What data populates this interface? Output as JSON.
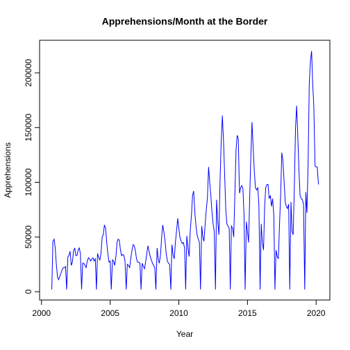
{
  "chart_data": {
    "type": "line",
    "title": "Apprehensions/Month at the Border",
    "x_label": "Year",
    "y_label": "Apprehensions",
    "x": [
      2000.75,
      2000.83,
      2000.92,
      2001,
      2001.08,
      2001.17,
      2001.25,
      2001.33,
      2001.42,
      2001.5,
      2001.58,
      2001.67,
      2001.75,
      2001.83,
      2001.92,
      2002,
      2002.08,
      2002.17,
      2002.25,
      2002.33,
      2002.42,
      2002.5,
      2002.58,
      2002.67,
      2002.75,
      2002.83,
      2002.92,
      2003,
      2003.08,
      2003.17,
      2003.25,
      2003.33,
      2003.42,
      2003.5,
      2003.58,
      2003.67,
      2003.75,
      2003.83,
      2003.92,
      2004,
      2004.08,
      2004.17,
      2004.25,
      2004.33,
      2004.42,
      2004.5,
      2004.58,
      2004.67,
      2004.75,
      2004.83,
      2004.92,
      2005,
      2005.08,
      2005.17,
      2005.25,
      2005.33,
      2005.42,
      2005.5,
      2005.58,
      2005.67,
      2005.75,
      2005.83,
      2005.92,
      2006,
      2006.08,
      2006.17,
      2006.25,
      2006.33,
      2006.42,
      2006.5,
      2006.58,
      2006.67,
      2006.75,
      2006.83,
      2006.92,
      2007,
      2007.08,
      2007.17,
      2007.25,
      2007.33,
      2007.42,
      2007.5,
      2007.58,
      2007.67,
      2007.75,
      2007.83,
      2007.92,
      2008,
      2008.08,
      2008.17,
      2008.25,
      2008.33,
      2008.42,
      2008.5,
      2008.58,
      2008.67,
      2008.75,
      2008.83,
      2008.92,
      2009,
      2009.08,
      2009.17,
      2009.25,
      2009.33,
      2009.42,
      2009.5,
      2009.58,
      2009.67,
      2009.75,
      2009.83,
      2009.92,
      2010,
      2010.08,
      2010.17,
      2010.25,
      2010.33,
      2010.42,
      2010.5,
      2010.58,
      2010.67,
      2010.75,
      2010.83,
      2010.92,
      2011,
      2011.08,
      2011.17,
      2011.25,
      2011.33,
      2011.42,
      2011.5,
      2011.58,
      2011.67,
      2011.75,
      2011.83,
      2011.92,
      2012,
      2012.08,
      2012.17,
      2012.25,
      2012.33,
      2012.42,
      2012.5,
      2012.58,
      2012.67,
      2012.75,
      2012.83,
      2012.92,
      2013,
      2013.08,
      2013.17,
      2013.25,
      2013.33,
      2013.42,
      2013.5,
      2013.58,
      2013.67,
      2013.75,
      2013.83,
      2013.92,
      2014,
      2014.08,
      2014.17,
      2014.25,
      2014.33,
      2014.42,
      2014.5,
      2014.58,
      2014.67,
      2014.75,
      2014.83,
      2014.92,
      2015,
      2015.08,
      2015.17,
      2015.25,
      2015.33,
      2015.42,
      2015.5,
      2015.58,
      2015.67,
      2015.75,
      2015.83,
      2015.92,
      2016,
      2016.08,
      2016.17,
      2016.25,
      2016.33,
      2016.42,
      2016.5,
      2016.58,
      2016.67,
      2016.75,
      2016.83,
      2016.92,
      2017,
      2017.08,
      2017.17,
      2017.25,
      2017.33,
      2017.42,
      2017.5,
      2017.58,
      2017.67,
      2017.75,
      2017.83,
      2017.92,
      2018,
      2018.08,
      2018.17,
      2018.25,
      2018.33,
      2018.42,
      2018.5,
      2018.58,
      2018.67,
      2018.75,
      2018.83,
      2018.92,
      2019,
      2019.08,
      2019.17,
      2019.25,
      2019.33,
      2019.42,
      2019.5,
      2019.58,
      2019.67,
      2019.75,
      2019.83,
      2019.92,
      2020,
      2020.08,
      2020.17
    ],
    "series": [
      {
        "color": "#0000ff",
        "values": [
          2000,
          46000,
          48000,
          40000,
          25000,
          13000,
          11000,
          14000,
          17000,
          20000,
          22000,
          22000,
          23000,
          2000,
          32000,
          33000,
          37000,
          24000,
          27000,
          37000,
          40000,
          33000,
          33000,
          38000,
          40000,
          35000,
          2000,
          26000,
          26000,
          24000,
          22000,
          28000,
          31000,
          30000,
          28000,
          30000,
          31000,
          28000,
          30000,
          2000,
          35000,
          31000,
          29000,
          35000,
          50000,
          52000,
          61000,
          58000,
          45000,
          35000,
          27000,
          28000,
          2000,
          29000,
          28000,
          24000,
          32000,
          45000,
          48000,
          47000,
          38000,
          33000,
          34000,
          33000,
          28000,
          2000,
          25000,
          24000,
          22000,
          30000,
          37000,
          43000,
          42000,
          38000,
          30000,
          27000,
          27000,
          26000,
          2000,
          26000,
          23000,
          21000,
          27000,
          35000,
          42000,
          37000,
          32000,
          29000,
          26000,
          24000,
          22000,
          2000,
          40000,
          30000,
          26000,
          34000,
          50000,
          61000,
          54000,
          46000,
          35000,
          28000,
          26000,
          25000,
          2000,
          43000,
          34000,
          30000,
          45000,
          55000,
          67000,
          58000,
          50000,
          46000,
          44000,
          45000,
          40000,
          2000,
          51000,
          40000,
          32000,
          55000,
          70000,
          88000,
          92000,
          72000,
          60000,
          52000,
          48000,
          45000,
          2000,
          60000,
          50000,
          46000,
          62000,
          75000,
          85000,
          114000,
          100000,
          88000,
          72000,
          62000,
          55000,
          2000,
          84000,
          65000,
          52000,
          100000,
          135000,
          161000,
          140000,
          110000,
          75000,
          62000,
          60000,
          58000,
          2000,
          60000,
          58000,
          50000,
          88000,
          130000,
          143000,
          140000,
          90000,
          95000,
          97000,
          94000,
          70000,
          2000,
          64000,
          55000,
          45000,
          90000,
          125000,
          155000,
          130000,
          110000,
          95000,
          93000,
          95000,
          80000,
          2000,
          62000,
          45000,
          38000,
          78000,
          95000,
          98000,
          98000,
          85000,
          88000,
          78000,
          85000,
          70000,
          2000,
          38000,
          32000,
          30000,
          60000,
          90000,
          127000,
          120000,
          100000,
          82000,
          78000,
          76000,
          80000,
          2000,
          82000,
          55000,
          52000,
          100000,
          150000,
          170000,
          140000,
          110000,
          88000,
          85000,
          84000,
          80000,
          2000,
          91000,
          72000,
          120000,
          190000,
          210000,
          220000,
          190000,
          170000,
          115000,
          114000,
          114000,
          98000
        ]
      }
    ],
    "xlim": [
      1999.86,
      2021.0
    ],
    "xticks": [
      2000,
      2005,
      2010,
      2015,
      2020
    ],
    "ylim": [
      -7600,
      229800
    ],
    "yticks": [
      0,
      50000,
      100000,
      150000,
      200000
    ]
  }
}
